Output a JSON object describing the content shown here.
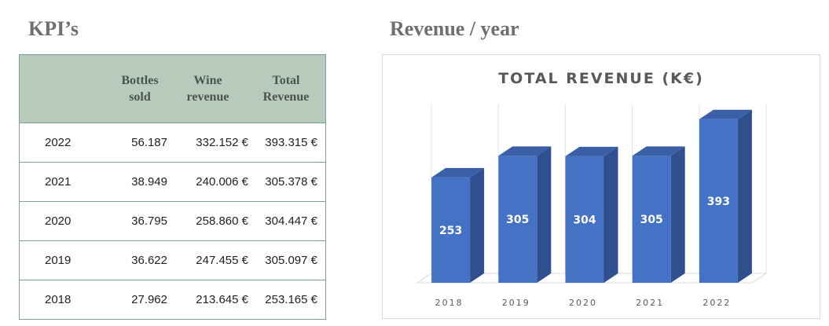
{
  "kpi": {
    "title": "KPI’s",
    "headers": [
      "",
      "Bottles\nsold",
      "Wine\nrevenue",
      "Total\nRevenue"
    ],
    "rows": [
      {
        "year": "2022",
        "bottles": "56.187",
        "wine": "332.152 €",
        "total": "393.315 €"
      },
      {
        "year": "2021",
        "bottles": "38.949",
        "wine": "240.006 €",
        "total": "305.378 €"
      },
      {
        "year": "2020",
        "bottles": "36.795",
        "wine": "258.860 €",
        "total": "304.447 €"
      },
      {
        "year": "2019",
        "bottles": "36.622",
        "wine": "247.455 €",
        "total": "305.097 €"
      },
      {
        "year": "2018",
        "bottles": "27.962",
        "wine": "213.645 €",
        "total": "253.165 €"
      }
    ]
  },
  "revenue": {
    "title": "Revenue / year"
  },
  "chart_data": {
    "type": "bar",
    "title": "TOTAL REVENUE (K€)",
    "categories": [
      "2018",
      "2019",
      "2020",
      "2021",
      "2022"
    ],
    "values": [
      253,
      305,
      304,
      305,
      393
    ],
    "labels": [
      "253",
      "305",
      "304",
      "305",
      "393"
    ],
    "ylim": [
      0,
      400
    ],
    "grid": true,
    "style": "3d-column",
    "colors": {
      "front": "#4472c4",
      "side": "#2f4f8f",
      "top": "#3a5fa6"
    }
  }
}
